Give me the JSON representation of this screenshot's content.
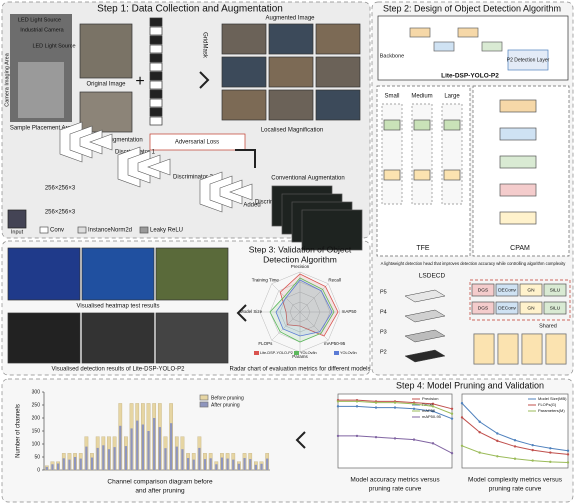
{
  "step1": {
    "title": "Step 1: Data Collection and Augmentation",
    "led_left": "LED Light Source",
    "camera": "Industrial Camera",
    "led_right": "LED Light Source",
    "imaging_area": "Camera Imaging Area",
    "placement_area": "Sample Placement Area",
    "original": "Original Image",
    "conventional": "Conventional Augmentation",
    "augmented": "Augmented Image",
    "gridmask": "GridMask",
    "magnification": "Localised Magnification",
    "conventional_bottom": "Conventional Augmentation",
    "adversarial_loss": "Adversarial Loss",
    "disc1": "Discriminator 1",
    "disc2": "Discriminator 2",
    "disc3": "Discriminator 3",
    "size1": "256×256×3",
    "size2": "256×256×3",
    "added": "Added",
    "input": "Input",
    "legend_conv": "Conv",
    "legend_norm": "InstanceNorm2d",
    "legend_relu": "Leaky ReLU"
  },
  "step2": {
    "title": "Step 2: Design of  Object Detection Algorithm",
    "model": "Lite-DSP-YOLO-P2",
    "backbone": "Backbone",
    "p2": "P2 Detection Layer",
    "tfe": "TFE",
    "cpam": "CPAM",
    "small": "Small",
    "medium": "Medium",
    "large": "Large",
    "head_note": "A lightweight detection head that improves detection accuracy while controlling algorithm complexity",
    "lsdecd": "LSDECD",
    "shared": "Shared",
    "levels": [
      "P5",
      "P4",
      "P3",
      "P2"
    ],
    "blocks": [
      "DGS",
      "DEConv",
      "GN",
      "SiLU"
    ]
  },
  "step3": {
    "title_lines": [
      "Step 3: Validation of  Object",
      "Detection Algorithm"
    ],
    "heatmap": "Visualised heatmap test results",
    "detection": "Visualised detection results of Lite-DSP-YOLO-P2",
    "radar_caption": "Radar chart of evaluation metrics for different models",
    "radar": {
      "type": "radar",
      "axes": [
        "Precision",
        "Recall",
        "mAP50",
        "mAP50-95",
        "Params",
        "FLOPs",
        "Model Size",
        "Training Time"
      ],
      "rlim": [
        0,
        1
      ],
      "series": [
        {
          "name": "Lite-DSP-YOLO-P2",
          "color": "#d9534f",
          "values": [
            0.95,
            0.9,
            0.95,
            0.85,
            0.35,
            0.45,
            0.35,
            0.7
          ]
        },
        {
          "name": "YOLOv8n",
          "color": "#5cb85c",
          "values": [
            0.85,
            0.8,
            0.85,
            0.75,
            0.75,
            0.7,
            0.75,
            0.55
          ]
        },
        {
          "name": "YOLOv5n",
          "color": "#5b7bd5",
          "values": [
            0.8,
            0.75,
            0.8,
            0.7,
            0.6,
            0.6,
            0.6,
            0.5
          ]
        }
      ]
    }
  },
  "step4": {
    "title": "Step 4: Model Pruning and Validation",
    "channel_chart": {
      "type": "bar",
      "title_lines": [
        "Channel comparison diagram before",
        "and after pruning"
      ],
      "y_label": "Number of channels",
      "ylim": [
        0,
        300
      ],
      "yticks": [
        0,
        50,
        100,
        150,
        200,
        250,
        300
      ],
      "categories": [
        null,
        null,
        null,
        null,
        null,
        null,
        null,
        null,
        null,
        null,
        null,
        null,
        null,
        null,
        null,
        null,
        null,
        null,
        null,
        null,
        null,
        null,
        null,
        null,
        null,
        null,
        null,
        null,
        null,
        null,
        null,
        null,
        null,
        null,
        null,
        null,
        null,
        null,
        null,
        null
      ],
      "series": [
        {
          "name": "Before pruning",
          "color": "#e6d5a3",
          "values": [
            16,
            32,
            32,
            64,
            64,
            64,
            64,
            128,
            64,
            128,
            128,
            128,
            128,
            256,
            128,
            256,
            256,
            256,
            256,
            256,
            256,
            128,
            256,
            128,
            128,
            64,
            64,
            128,
            64,
            64,
            32,
            64,
            64,
            64,
            32,
            64,
            64,
            32,
            32,
            64
          ]
        },
        {
          "name": "After pruning",
          "color": "#8e95bd",
          "values": [
            12,
            22,
            25,
            45,
            40,
            50,
            44,
            90,
            48,
            85,
            95,
            80,
            88,
            170,
            92,
            160,
            190,
            175,
            150,
            200,
            165,
            84,
            180,
            90,
            80,
            46,
            40,
            85,
            42,
            45,
            22,
            48,
            44,
            40,
            24,
            46,
            42,
            20,
            24,
            44
          ]
        }
      ]
    },
    "accuracy_chart": {
      "type": "line",
      "title_lines": [
        "Model accuracy metrics versus",
        "pruning rate curve"
      ],
      "x": [
        1.0,
        1.5,
        2.0,
        2.5,
        3.0,
        3.5,
        4.0
      ],
      "xlim": [
        1.0,
        4.0
      ],
      "ylim": [
        0.4,
        1.0
      ],
      "series": [
        {
          "name": "Precision",
          "color": "#c0504d",
          "values": [
            0.95,
            0.95,
            0.94,
            0.94,
            0.93,
            0.92,
            0.88
          ]
        },
        {
          "name": "Recall",
          "color": "#4f81bd",
          "values": [
            0.9,
            0.9,
            0.89,
            0.89,
            0.88,
            0.86,
            0.8
          ]
        },
        {
          "name": "mAP50",
          "color": "#9bbb59",
          "values": [
            0.94,
            0.94,
            0.93,
            0.93,
            0.92,
            0.9,
            0.84
          ]
        },
        {
          "name": "mAP50-95",
          "color": "#8064a2",
          "values": [
            0.66,
            0.66,
            0.65,
            0.64,
            0.63,
            0.6,
            0.52
          ]
        }
      ]
    },
    "complexity_chart": {
      "type": "line",
      "title_lines": [
        "Model complexity metrics versus",
        "pruning rate curve"
      ],
      "x": [
        1.0,
        1.5,
        2.0,
        2.5,
        3.0,
        3.5,
        4.0
      ],
      "xlim": [
        1.0,
        4.0
      ],
      "ylim": [
        0,
        12
      ],
      "series": [
        {
          "name": "Model Size(MB)",
          "color": "#4f81bd",
          "values": [
            10.5,
            7.5,
            5.6,
            4.5,
            3.7,
            3.2,
            2.8
          ]
        },
        {
          "name": "FLOPs(G)",
          "color": "#c0504d",
          "values": [
            8.2,
            5.8,
            4.4,
            3.5,
            2.9,
            2.5,
            2.2
          ]
        },
        {
          "name": "Parameters(M)",
          "color": "#9bbb59",
          "values": [
            3.6,
            2.5,
            1.9,
            1.5,
            1.2,
            1.0,
            0.9
          ]
        }
      ]
    }
  }
}
